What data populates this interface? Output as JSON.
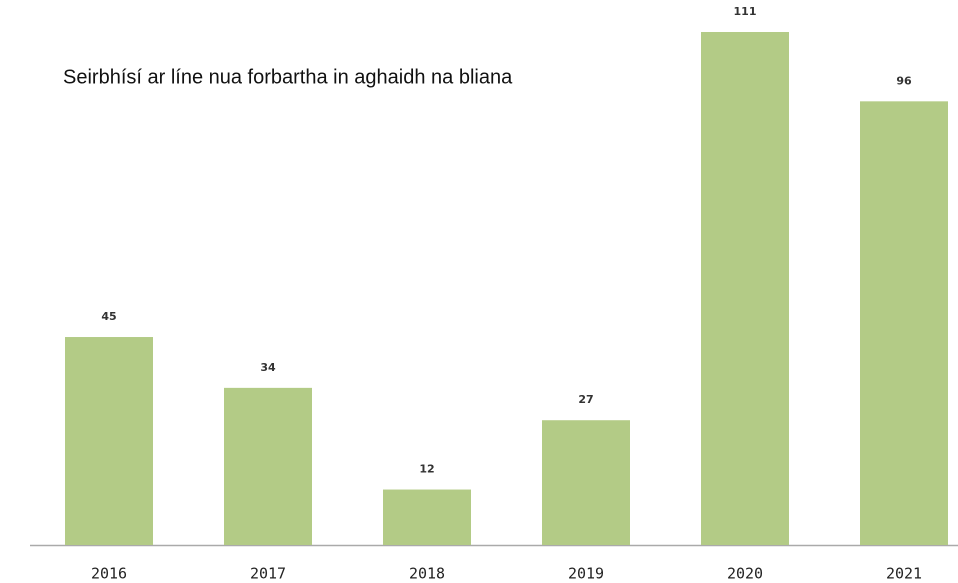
{
  "chart_data": {
    "type": "bar",
    "title": "Seirbhísí ar líne nua forbartha in aghaidh na bliana",
    "categories": [
      "2016",
      "2017",
      "2018",
      "2019",
      "2020",
      "2021"
    ],
    "values": [
      45,
      34,
      12,
      27,
      111,
      96
    ],
    "color": "#b3cb86"
  }
}
